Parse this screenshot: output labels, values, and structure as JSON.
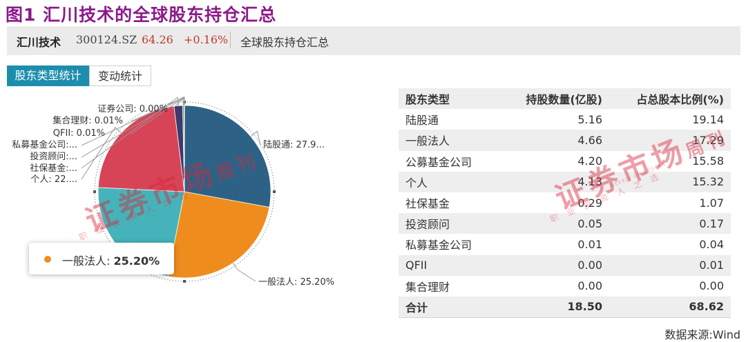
{
  "figure_title": "图1 汇川技术的全球股东持仓汇总",
  "stock": {
    "name": "汇川技术",
    "code": "300124.SZ",
    "price": "64.26",
    "change": "+0.16%",
    "subtitle": "全球股东持仓汇总"
  },
  "tabs": [
    {
      "label": "股东类型统计",
      "active": true
    },
    {
      "label": "变动统计",
      "active": false
    }
  ],
  "chart_data": {
    "type": "pie",
    "slices": [
      {
        "name": "陆股通",
        "value": 27.9,
        "label": "陆股通: 27.9...",
        "color": "#2d6286"
      },
      {
        "name": "一般法人",
        "value": 25.2,
        "label": "一般法人: 25.20%",
        "color": "#ee8d1e"
      },
      {
        "name": "公募基金公司",
        "value": 22.7,
        "label": "",
        "color": "#46b3ba"
      },
      {
        "name": "个人",
        "value": 22.3,
        "label": "个人: 22....",
        "color": "#d84457"
      },
      {
        "name": "社保基金",
        "value": 1.6,
        "label": "社保基金:...",
        "color": "#3d3a6e"
      },
      {
        "name": "投资顾问",
        "value": 0.25,
        "label": "投资顾问:...",
        "color": "#6d7f3a"
      },
      {
        "name": "私募基金公司",
        "value": 0.06,
        "label": "私募基金公司:...",
        "color": "#8b6db0"
      },
      {
        "name": "QFII",
        "value": 0.01,
        "label": "QFII: 0.01%",
        "color": "#a5c739"
      },
      {
        "name": "集合理财",
        "value": 0.01,
        "label": "集合理财: 0.01%",
        "color": "#e6c640"
      },
      {
        "name": "证券公司",
        "value": 0.0,
        "label": "证券公司: 0.00%",
        "color": "#9bb8d6"
      }
    ]
  },
  "tooltip": {
    "label": "一般法人:",
    "value": "25.20%",
    "color": "#ee8d1e"
  },
  "table": {
    "headers": [
      "股东类型",
      "持股数量(亿股)",
      "占总股本比例(%)"
    ],
    "rows": [
      [
        "陆股通",
        "5.16",
        "19.14"
      ],
      [
        "一般法人",
        "4.66",
        "17.29"
      ],
      [
        "公募基金公司",
        "4.20",
        "15.58"
      ],
      [
        "个人",
        "4.13",
        "15.32"
      ],
      [
        "社保基金",
        "0.29",
        "1.07"
      ],
      [
        "投资顾问",
        "0.05",
        "0.17"
      ],
      [
        "私募基金公司",
        "0.01",
        "0.04"
      ],
      [
        "QFII",
        "0.00",
        "0.01"
      ],
      [
        "集合理财",
        "0.00",
        "0.00"
      ]
    ],
    "total": [
      "合计",
      "18.50",
      "68.62"
    ]
  },
  "watermark": {
    "main": "证券市场",
    "small": "周刊",
    "sub": "职业投资人之选",
    "sub_en": "WEEKLY ON STOCKS"
  },
  "source": "数据来源:Wind"
}
